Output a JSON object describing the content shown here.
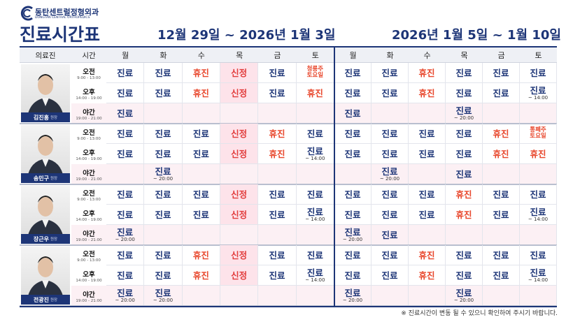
{
  "header": {
    "logo": "동탄센트럴정형외과",
    "logo_sub": "DONGTAN CENTRAL ORTHOPEDICS",
    "title": "진료시간표",
    "week1": "12월 29일 ~ 2026년 1월 3일",
    "week2": "2026년 1월 5일 ~ 1월 10일"
  },
  "table": {
    "columns": [
      "의료진",
      "시간"
    ],
    "days": [
      "월",
      "화",
      "수",
      "목",
      "금",
      "토"
    ],
    "sessions": [
      {
        "label": "오전",
        "time": "9:00 - 13:00"
      },
      {
        "label": "오후",
        "time": "14:00 - 19:00"
      },
      {
        "label": "야간",
        "time": "19:00 - 21:00"
      }
    ],
    "doctors": [
      {
        "name": "김진홍",
        "role": "원장",
        "rows": [
          [
            "진료",
            "진료",
            "휴진",
            "신정",
            "진료",
            "청룡주\n토요일",
            "진료",
            "진료",
            "휴진",
            "진료",
            "진료",
            "진료"
          ],
          [
            "진료",
            "진료",
            "휴진",
            "신정",
            "진료",
            "휴진",
            "진료",
            "진료",
            "휴진",
            "진료",
            "진료",
            {
              "text": "진료",
              "sub": "~ 14:00"
            }
          ],
          [
            "진료",
            null,
            null,
            null,
            null,
            null,
            "진료",
            null,
            null,
            {
              "text": "진료",
              "sub": "~ 20:00"
            },
            null,
            null
          ]
        ]
      },
      {
        "name": "송민구",
        "role": "원장",
        "rows": [
          [
            "진료",
            "진료",
            "진료",
            "신정",
            "휴진",
            "진료",
            "진료",
            "진료",
            "진료",
            "진료",
            "휴진",
            "통폐주\n토요일"
          ],
          [
            "진료",
            "진료",
            "진료",
            "신정",
            "휴진",
            {
              "text": "진료",
              "sub": "~ 14:00"
            },
            "진료",
            "진료",
            "진료",
            "진료",
            "휴진",
            "휴진"
          ],
          [
            null,
            {
              "text": "진료",
              "sub": "~ 20:00"
            },
            null,
            null,
            null,
            null,
            null,
            {
              "text": "진료",
              "sub": "~ 20:00"
            },
            null,
            "진료",
            null,
            null
          ]
        ]
      },
      {
        "name": "장근우",
        "role": "원장",
        "rows": [
          [
            "진료",
            "진료",
            "진료",
            "신정",
            "진료",
            "진료",
            "진료",
            "진료",
            "진료",
            "휴진",
            "진료",
            "진료"
          ],
          [
            "진료",
            "진료",
            "진료",
            "신정",
            "진료",
            {
              "text": "진료",
              "sub": "~ 14:00"
            },
            "진료",
            "진료",
            "진료",
            "휴진",
            "진료",
            {
              "text": "진료",
              "sub": "~ 14:00"
            }
          ],
          [
            {
              "text": "진료",
              "sub": "~ 20:00"
            },
            null,
            null,
            null,
            null,
            null,
            {
              "text": "진료",
              "sub": "~ 20:00"
            },
            "진료",
            null,
            null,
            null,
            null
          ]
        ]
      },
      {
        "name": "전광진",
        "role": "원장",
        "rows": [
          [
            "진료",
            "진료",
            "휴진",
            "신정",
            "진료",
            "진료",
            "진료",
            "진료",
            "휴진",
            "진료",
            "진료",
            "진료"
          ],
          [
            "진료",
            "진료",
            "휴진",
            "신정",
            "진료",
            {
              "text": "진료",
              "sub": "~ 14:00"
            },
            "진료",
            "진료",
            "휴진",
            "진료",
            "진료",
            {
              "text": "진료",
              "sub": "~ 14:00"
            }
          ],
          [
            {
              "text": "진료",
              "sub": "~ 20:00"
            },
            {
              "text": "진료",
              "sub": "~ 20:00"
            },
            null,
            null,
            null,
            null,
            {
              "text": "진료",
              "sub": "~ 20:00"
            },
            null,
            null,
            {
              "text": "진료",
              "sub": "~ 20:00"
            },
            null,
            null
          ]
        ]
      }
    ]
  },
  "default_color": "#1d3577",
  "status_colors": {
    "휴진": "#e8462b",
    "신정": "#e23d3d",
    "청룡주\n토요일": "#e8462b",
    "통폐주\n토요일": "#e8462b"
  },
  "holiday_bg": {
    "신정": "#fde3ea"
  },
  "footer": "※ 진료시간이 변동 될 수 있으니 확인하여 주시기 바랍니다."
}
